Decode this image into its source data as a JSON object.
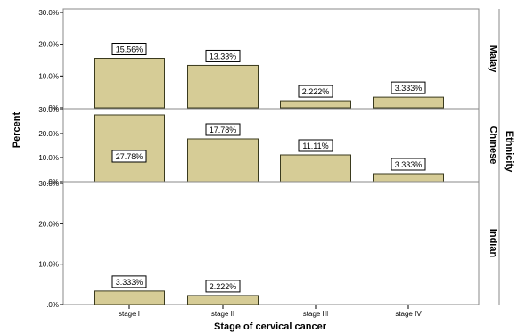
{
  "chart_data": {
    "type": "bar",
    "xlabel": "Stage of cervical cancer",
    "ylabel": "Percent",
    "facet_label": "Ethnicity",
    "categories": [
      "stage I",
      "stage II",
      "stage III",
      "stage IV"
    ],
    "yticks": [
      "30.0%",
      "20.0%",
      "10.0%",
      ".0%"
    ],
    "ylim": [
      0,
      30
    ],
    "colors": {
      "bar": "#d6cc96",
      "bar_stroke": "#3a3a1e",
      "frame": "#888888"
    },
    "panels": [
      {
        "name": "Malay",
        "values": [
          15.56,
          13.33,
          2.222,
          3.333
        ],
        "labels": [
          "15.56%",
          "13.33%",
          "2.222%",
          "3.333%"
        ]
      },
      {
        "name": "Chinese",
        "values": [
          27.78,
          17.78,
          11.11,
          3.333
        ],
        "labels": [
          "27.78%",
          "17.78%",
          "11.11%",
          "3.333%"
        ]
      },
      {
        "name": "Indian",
        "values": [
          3.333,
          2.222,
          null,
          null
        ],
        "labels": [
          "3.333%",
          "2.222%",
          null,
          null
        ]
      }
    ]
  }
}
